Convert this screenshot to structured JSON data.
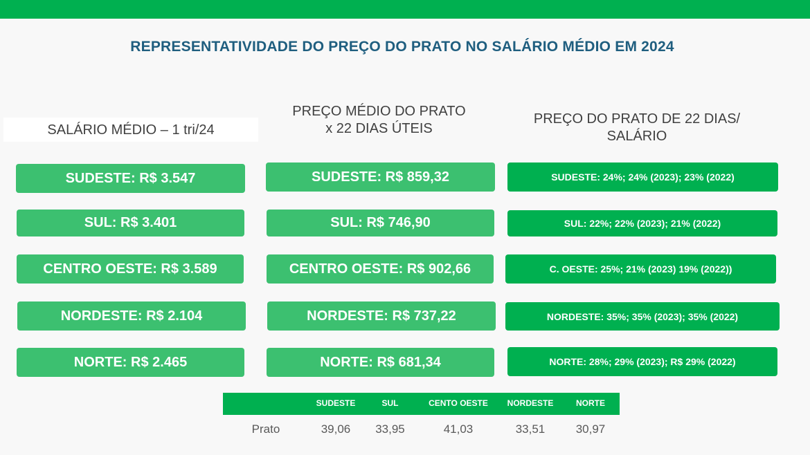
{
  "title": "REPRESENTATIVIDADE DO PREÇO DO PRATO NO SALÁRIO MÉDIO EM 2024",
  "columns": {
    "salary": {
      "header": "SALÁRIO MÉDIO – 1 tri/24"
    },
    "plate": {
      "header_line1": "PREÇO MÉDIO DO PRATO",
      "header_line2": "x 22 DIAS ÚTEIS"
    },
    "ratio": {
      "header_line1": "PREÇO DO PRATO DE 22 DIAS/",
      "header_line2": "SALÁRIO"
    }
  },
  "salary_boxes": [
    "SUDESTE: R$ 3.547",
    "SUL: R$ 3.401",
    "CENTRO OESTE: R$ 3.589",
    "NORDESTE: R$ 2.104",
    "NORTE: R$ 2.465"
  ],
  "plate_boxes": [
    "SUDESTE: R$ 859,32",
    "SUL: R$ 746,90",
    "CENTRO OESTE: R$ 902,66",
    "NORDESTE: R$ 737,22",
    "NORTE: R$ 681,34"
  ],
  "ratio_boxes": [
    "SUDESTE: 24%; 24% (2023); 23% (2022)",
    "SUL: 22%; 22% (2023); 21% (2022)",
    "C. OESTE: 25%; 21% (2023) 19% (2022))",
    "NORDESTE: 35%; 35% (2023); 35% (2022)",
    "NORTE: 28%; 29% (2023); R$ 29% (2022)"
  ],
  "table": {
    "headers": [
      "SUDESTE",
      "SUL",
      "CENTO OESTE",
      "NORDESTE",
      "NORTE"
    ],
    "row_label": "Prato",
    "values": [
      "39,06",
      "33,95",
      "41,03",
      "33,51",
      "30,97"
    ]
  },
  "colors": {
    "top_bar": "#00b050",
    "title": "#1f5e7f",
    "light_box": "#3cc070",
    "dark_box": "#00b050"
  }
}
